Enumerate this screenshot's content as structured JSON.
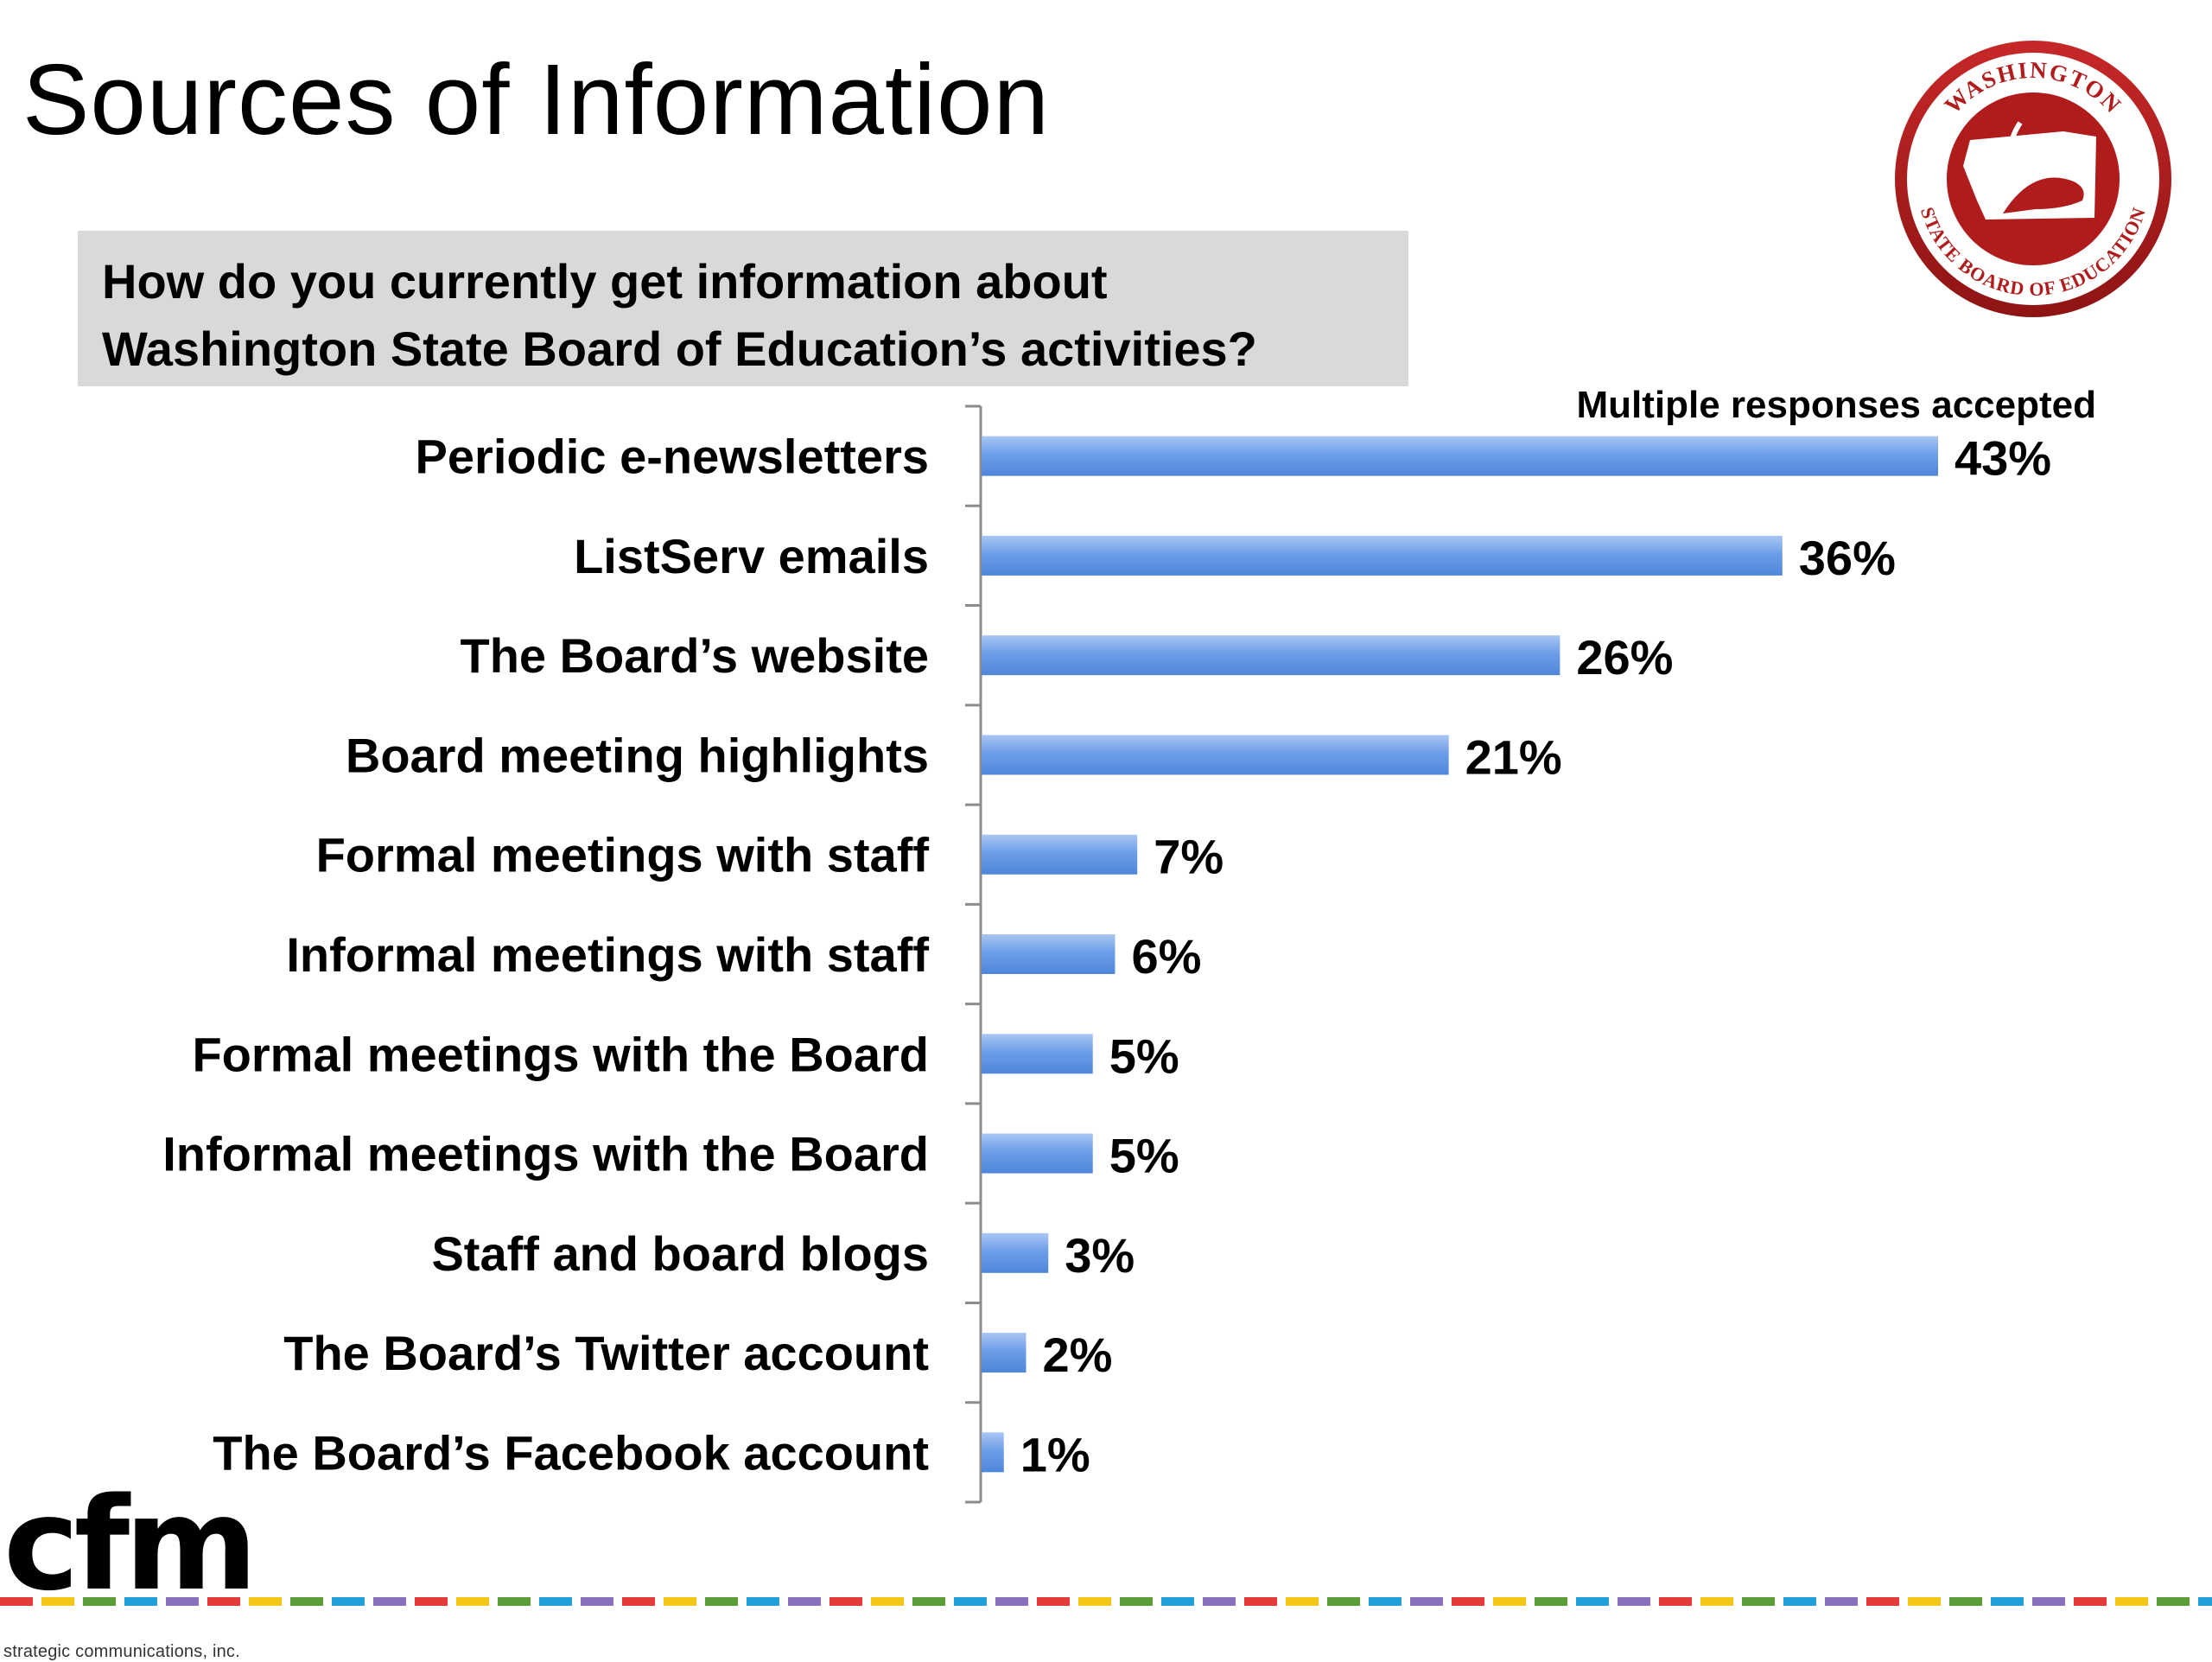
{
  "title": "Sources of Information",
  "question": {
    "line1": "How do you currently get information about",
    "line2": "Washington State Board of Education’s activities?"
  },
  "note": "Multiple responses accepted",
  "seal": {
    "top_text": "WASHINGTON",
    "bottom_text": "STATE BOARD OF EDUCATION",
    "color": "#b01c1c"
  },
  "logo": {
    "wordmark": "cfm",
    "tagline": "strategic communications, inc."
  },
  "chart_data": {
    "type": "bar",
    "orientation": "horizontal",
    "categories": [
      "Periodic e-newsletters",
      "ListServ emails",
      "The Board’s website",
      "Board meeting highlights",
      "Formal meetings with staff",
      "Informal meetings with staff",
      "Formal meetings with the Board",
      "Informal meetings with the Board",
      "Staff and board blogs",
      "The Board’s Twitter account",
      "The Board’s Facebook account"
    ],
    "values": [
      43,
      36,
      26,
      21,
      7,
      6,
      5,
      5,
      3,
      2,
      1
    ],
    "value_labels": [
      "43%",
      "36%",
      "26%",
      "21%",
      "7%",
      "6%",
      "5%",
      "5%",
      "3%",
      "2%",
      "1%"
    ],
    "unit": "%",
    "xlim": [
      0,
      50
    ],
    "bar_color": "#6d9ee8",
    "grid": false,
    "legend": "none"
  },
  "colors": {
    "question_box": "#d9d9d9",
    "footer_dashes": [
      "#e53a3a",
      "#f5c518",
      "#5a9e3a",
      "#1fa0db",
      "#8a6fbf"
    ]
  }
}
